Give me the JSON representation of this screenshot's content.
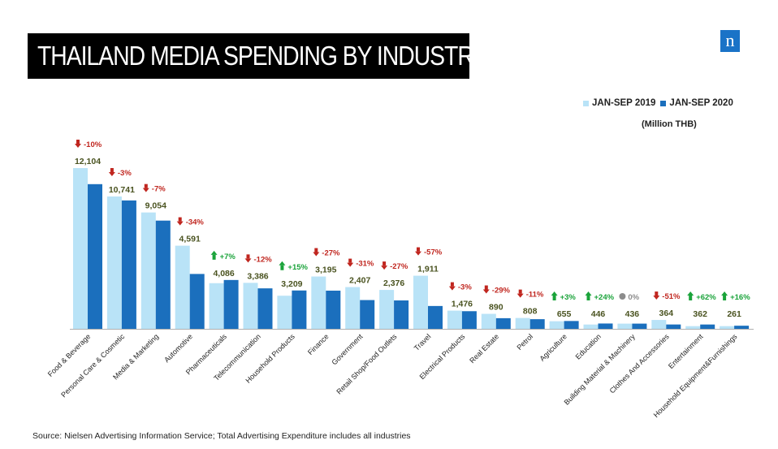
{
  "header": {
    "title": "THAILAND  MEDIA SPENDING BY INDUSTRY",
    "logo_letter": "n"
  },
  "legend": {
    "series_2019": "JAN-SEP 2019",
    "series_2020": "JAN-SEP 2020",
    "unit": "(Million THB)"
  },
  "footer": {
    "source": "Source: Nielsen Advertising Information Service; Total Advertising Expenditure includes all industries"
  },
  "colors": {
    "light_bar": "#b9e3f7",
    "dark_bar": "#1b6fbd",
    "value_label": "#4a5320",
    "up": "#1aa33a",
    "down": "#c0261f",
    "neutral": "#8c8c8c"
  },
  "chart_data": {
    "type": "bar",
    "categories": [
      "Food & Beverage",
      "Personal Care & Cosmetic",
      "Media & Marketing",
      "Automotive",
      "Pharmaceuticals",
      "Telecommunication",
      "Household Products",
      "Finance",
      "Government",
      "Retail Shop/Food Outlets",
      "Travel",
      "Electrical Products",
      "Real Estate",
      "Petrol",
      "Agriculture",
      "Education",
      "Building Material & Machinery",
      "Clothes And Accessories",
      "Entertainment",
      "Household Equipment&Furnishings"
    ],
    "series": [
      {
        "name": "JAN-SEP 2019",
        "values": [
          13449,
          11073,
          9736,
          6956,
          3819,
          3848,
          2770,
          4377,
          3493,
          3255,
          4444,
          1522,
          1254,
          908,
          636,
          360,
          436,
          743,
          224,
          225
        ]
      },
      {
        "name": "JAN-SEP 2020",
        "values": [
          12104,
          10741,
          9054,
          4591,
          4086,
          3386,
          3209,
          3195,
          2407,
          2376,
          1911,
          1476,
          890,
          808,
          655,
          446,
          436,
          364,
          362,
          261
        ]
      }
    ],
    "value_labels": [
      "12,104",
      "10,741",
      "9,054",
      "4,591",
      "4,086",
      "3,386",
      "3,209",
      "3,195",
      "2,407",
      "2,376",
      "1,911",
      "1,476",
      "890",
      "808",
      "655",
      "446",
      "436",
      "364",
      "362",
      "261"
    ],
    "changes": [
      {
        "label": "-10%",
        "dir": "down"
      },
      {
        "label": "-3%",
        "dir": "down"
      },
      {
        "label": "-7%",
        "dir": "down"
      },
      {
        "label": "-34%",
        "dir": "down"
      },
      {
        "label": "+7%",
        "dir": "up"
      },
      {
        "label": "-12%",
        "dir": "down"
      },
      {
        "label": "+15%",
        "dir": "up"
      },
      {
        "label": "-27%",
        "dir": "down"
      },
      {
        "label": "-31%",
        "dir": "down"
      },
      {
        "label": "-27%",
        "dir": "down"
      },
      {
        "label": "-57%",
        "dir": "down"
      },
      {
        "label": "-3%",
        "dir": "down"
      },
      {
        "label": "-29%",
        "dir": "down"
      },
      {
        "label": "-11%",
        "dir": "down"
      },
      {
        "label": "+3%",
        "dir": "up"
      },
      {
        "label": "+24%",
        "dir": "up"
      },
      {
        "label": "0%",
        "dir": "flat"
      },
      {
        "label": "-51%",
        "dir": "down"
      },
      {
        "label": "+62%",
        "dir": "up"
      },
      {
        "label": "+16%",
        "dir": "up"
      }
    ],
    "ylim": [
      0,
      14000
    ],
    "grid": false,
    "legend_position": "top-right"
  }
}
